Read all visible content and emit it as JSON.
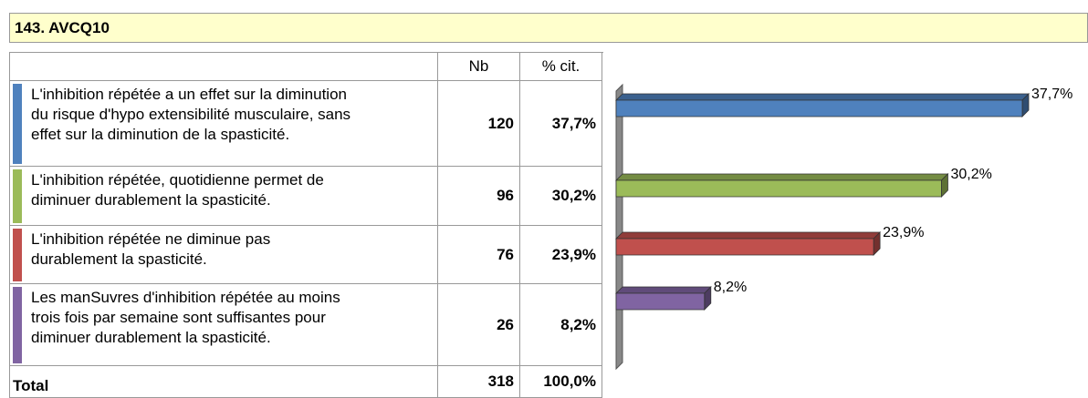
{
  "title": "143. AVCQ10",
  "table": {
    "headers": [
      "Nb",
      "% cit."
    ],
    "rows": [
      {
        "lines": [
          "L'inhibition répétée a un effet sur la diminution",
          "du risque d'hypo extensibilité musculaire, sans",
          "effet sur la diminution de la spasticité."
        ],
        "nb": "120",
        "pct": "37,7%"
      },
      {
        "lines": [
          "L'inhibition répétée, quotidienne permet de",
          "diminuer durablement la spasticité."
        ],
        "nb": "96",
        "pct": "30,2%"
      },
      {
        "lines": [
          "L'inhibition répétée ne diminue pas",
          "durablement la spasticité."
        ],
        "nb": "76",
        "pct": "23,9%"
      },
      {
        "lines": [
          "Les manSuvres d'inhibition répétée au moins",
          "trois fois par semaine sont suffisantes pour",
          "diminuer durablement la spasticité."
        ],
        "nb": "26",
        "pct": "8,2%"
      }
    ],
    "total": {
      "label": "Total",
      "nb": "318",
      "pct": "100,0%"
    }
  },
  "chart_data": {
    "type": "bar3d",
    "values": [
      37.7,
      30.2,
      23.9,
      8.2
    ],
    "value_labels": [
      "37,7%",
      "30,2%",
      "23,9%",
      "8,2%"
    ],
    "colors": [
      "#4f81bd",
      "#9bbb59",
      "#c0504d",
      "#8064a2"
    ]
  }
}
